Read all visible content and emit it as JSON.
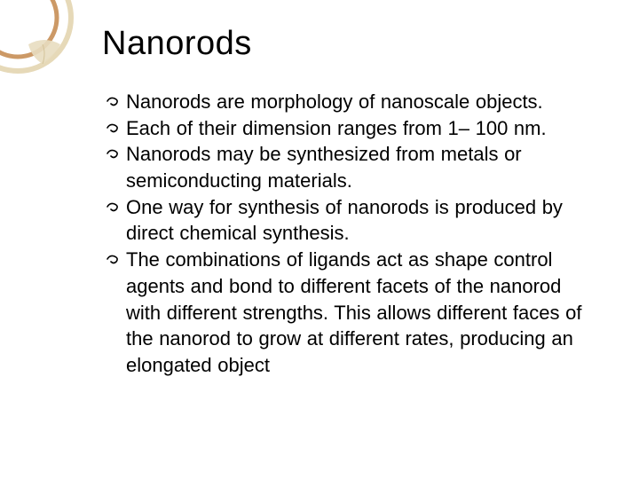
{
  "decoration": {
    "outer_ring_color": "#e6d9b8",
    "inner_ring_color": "#cc9966",
    "leaf_color": "#e8ddc0"
  },
  "title": "Nanorods",
  "bullets": [
    {
      "text": "Nanorods are morphology of nanoscale objects."
    },
    {
      "text": "Each of their dimension ranges from 1– 100 nm."
    },
    {
      "text": "Nanorods may be synthesized from metals or semiconducting materials."
    },
    {
      "text": "One way for synthesis of nanorods is produced by direct chemical synthesis."
    },
    {
      "text": "The combinations of ligands act as shape control agents and bond to different facets of the nanorod with different strengths. This allows different faces of the nanorod to grow at different rates, producing an elongated object"
    }
  ],
  "bullet_glyph": "་"
}
